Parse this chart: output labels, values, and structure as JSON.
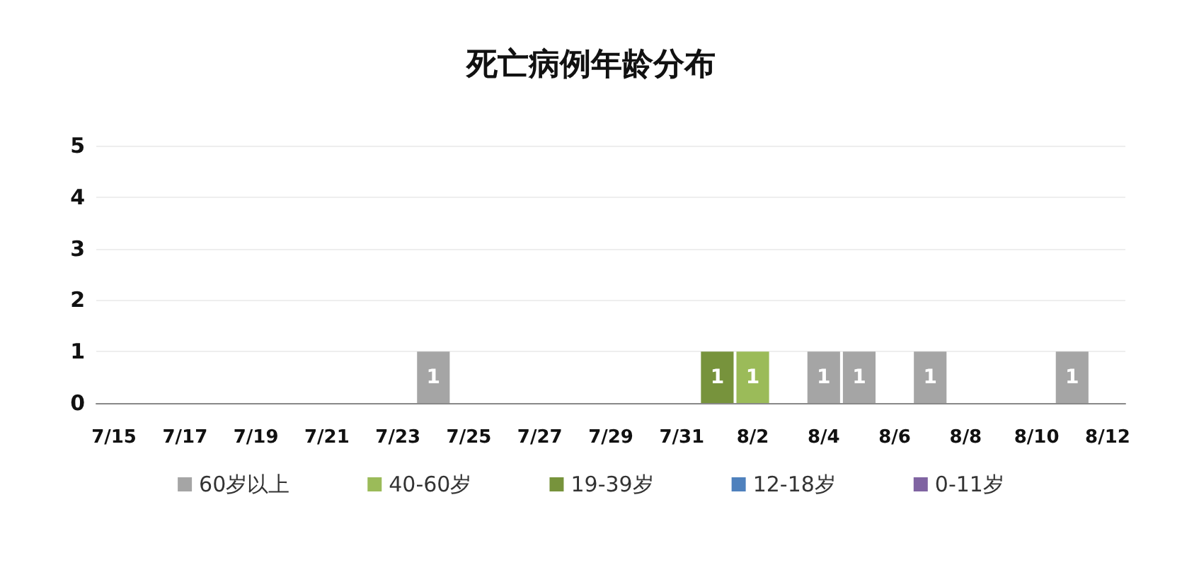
{
  "chart_data": {
    "type": "bar",
    "title": "死亡病例年龄分布",
    "categories": [
      "7/15",
      null,
      "7/17",
      null,
      "7/19",
      null,
      "7/21",
      null,
      "7/23",
      null,
      "7/25",
      null,
      "7/27",
      null,
      "7/29",
      null,
      "7/31",
      null,
      "8/2",
      null,
      "8/4",
      null,
      "8/6",
      null,
      "8/8",
      null,
      "8/10",
      null,
      "8/12"
    ],
    "stacked": true,
    "series": [
      {
        "name": "60岁以上",
        "color": "#a5a5a5",
        "values": [
          null,
          null,
          null,
          null,
          null,
          null,
          null,
          null,
          null,
          1,
          null,
          null,
          null,
          null,
          null,
          null,
          null,
          null,
          null,
          null,
          1,
          1,
          null,
          1,
          null,
          null,
          null,
          1,
          null
        ]
      },
      {
        "name": "40-60岁",
        "color": "#9bbb59",
        "values": [
          null,
          null,
          null,
          null,
          null,
          null,
          null,
          null,
          null,
          null,
          null,
          null,
          null,
          null,
          null,
          null,
          null,
          null,
          1,
          null,
          null,
          null,
          null,
          null,
          null,
          null,
          null,
          null,
          null
        ]
      },
      {
        "name": "19-39岁",
        "color": "#77933c",
        "values": [
          null,
          null,
          null,
          null,
          null,
          null,
          null,
          null,
          null,
          null,
          null,
          null,
          null,
          null,
          null,
          null,
          null,
          1,
          null,
          null,
          null,
          null,
          null,
          null,
          null,
          null,
          null,
          null,
          null
        ]
      },
      {
        "name": "12-18岁",
        "color": "#4f81bd",
        "values": [
          null,
          null,
          null,
          null,
          null,
          null,
          null,
          null,
          null,
          null,
          null,
          null,
          null,
          null,
          null,
          null,
          null,
          null,
          null,
          null,
          null,
          null,
          null,
          null,
          null,
          null,
          null,
          null,
          null
        ]
      },
      {
        "name": "0-11岁",
        "color": "#8064a2",
        "values": [
          null,
          null,
          null,
          null,
          null,
          null,
          null,
          null,
          null,
          null,
          null,
          null,
          null,
          null,
          null,
          null,
          null,
          null,
          null,
          null,
          null,
          null,
          null,
          null,
          null,
          null,
          null,
          null,
          null
        ]
      }
    ],
    "ylim": [
      0,
      5
    ],
    "yticks": [
      0,
      1,
      2,
      3,
      4,
      5
    ],
    "grid": "y",
    "legend": "bottom",
    "data_labels": true
  }
}
